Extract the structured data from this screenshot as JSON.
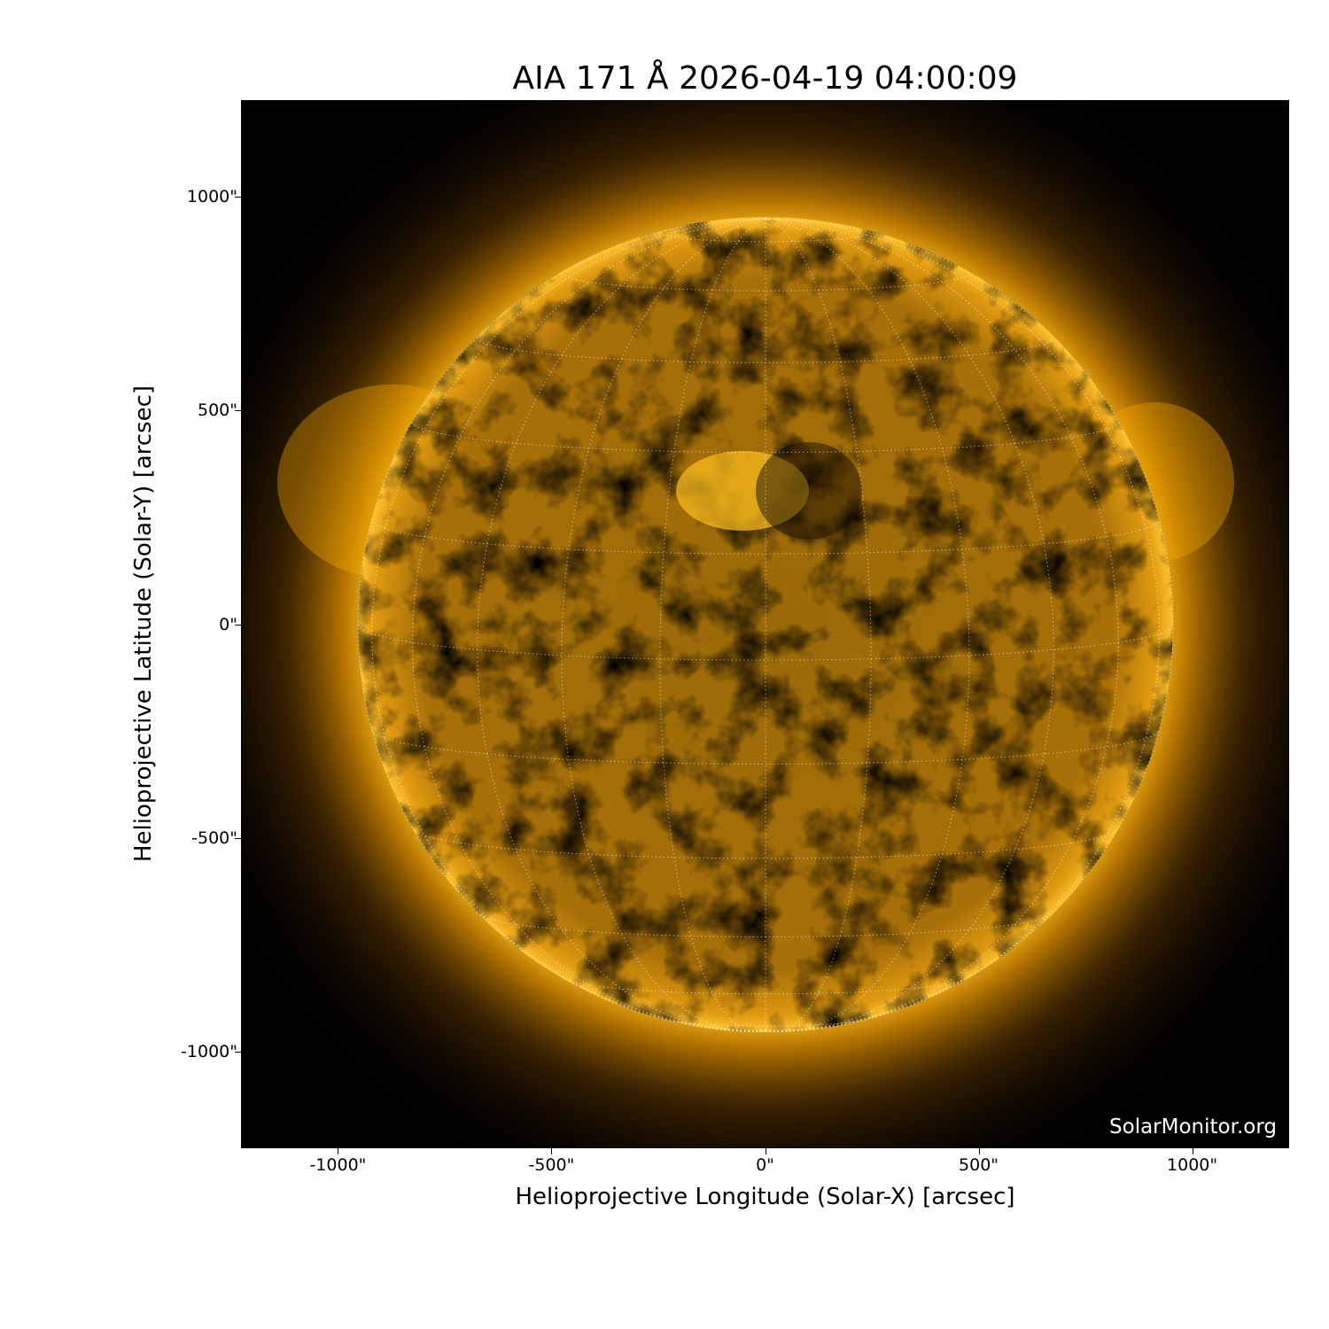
{
  "title": "AIA 171 Å 2026-04-19 04:00:09",
  "image": {
    "subject": "sun-euv-171",
    "colormap_accent": "#ffb000",
    "background": "#000000",
    "grid": "heliographic lat/lon, dotted white",
    "watermark": "SolarMonitor.org"
  },
  "axes": {
    "xlabel": "Helioprojective Longitude (Solar-X) [arcsec]",
    "ylabel": "Helioprojective Latitude (Solar-Y) [arcsec]",
    "xticks": [
      "-1000\"",
      "-500\"",
      "0\"",
      "500\"",
      "1000\""
    ],
    "yticks": [
      "1000\"",
      "500\"",
      "0\"",
      "-500\"",
      "-1000\""
    ],
    "xtick_values": [
      -1000,
      -500,
      0,
      500,
      1000
    ],
    "ytick_values": [
      1000,
      500,
      0,
      -500,
      -1000
    ],
    "xlim": [
      -1227,
      1227
    ],
    "ylim": [
      -1227,
      1227
    ]
  }
}
